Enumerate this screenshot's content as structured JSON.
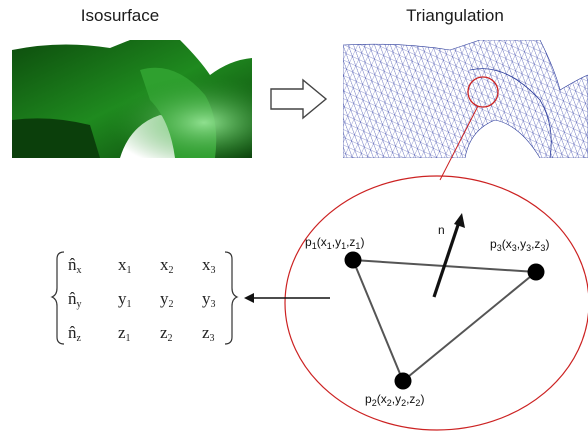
{
  "titles": {
    "isosurface": "Isosurface",
    "triangulation": "Triangulation"
  },
  "triangle": {
    "normal_label": "n",
    "vertices": [
      {
        "p": "p",
        "i": "1",
        "x": "x",
        "y": "y",
        "z": "z"
      },
      {
        "p": "p",
        "i": "2",
        "x": "x",
        "y": "y",
        "z": "z"
      },
      {
        "p": "p",
        "i": "3",
        "x": "x",
        "y": "y",
        "z": "z"
      }
    ]
  },
  "matrix": {
    "rows": [
      {
        "n": "n̂",
        "sub": "x",
        "c1": "x",
        "s1": "1",
        "c2": "x",
        "s2": "2",
        "c3": "x",
        "s3": "3"
      },
      {
        "n": "n̂",
        "sub": "y",
        "c1": "y",
        "s1": "1",
        "c2": "y",
        "s2": "2",
        "c3": "y",
        "s3": "3"
      },
      {
        "n": "n̂",
        "sub": "z",
        "c1": "z",
        "s1": "1",
        "c2": "z",
        "s2": "2",
        "c3": "z",
        "s3": "3"
      }
    ]
  },
  "colors": {
    "isosurface_green": "#1f8a1f",
    "mesh_blue": "#2a3a9a",
    "highlight_red": "#cc2222",
    "edge_gray": "#555555"
  }
}
